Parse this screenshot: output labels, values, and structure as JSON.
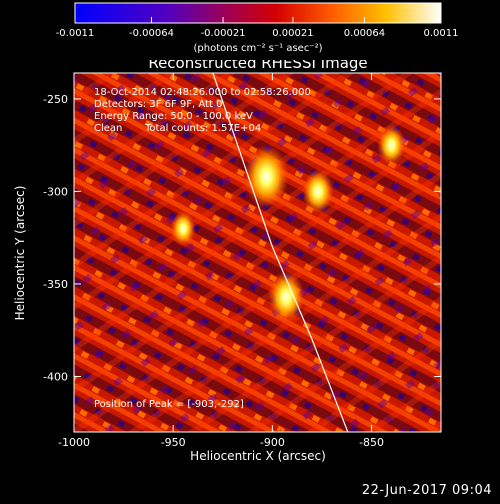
{
  "colors": {
    "background": "#000000",
    "foreground": "#ffffff",
    "colormap": [
      "#0000ff",
      "#6a00a8",
      "#c0002a",
      "#ff4000",
      "#ff9a00",
      "#ffff00",
      "#ffffff"
    ]
  },
  "colorbar": {
    "tick_labels": [
      "-0.0011",
      "-0.00064",
      "-0.00021",
      "0.00021",
      "0.00064",
      "0.0011"
    ],
    "tick_values": [
      -0.0011,
      -0.00064,
      -0.00021,
      0.00021,
      0.00064,
      0.0011
    ],
    "range": [
      -0.0011,
      0.0011
    ],
    "units_label": "(photons cm⁻² s⁻¹ asec⁻²)"
  },
  "chart_data": {
    "type": "heatmap",
    "title": "Reconstructed RHESSI Image",
    "xlabel": "Heliocentric X (arcsec)",
    "ylabel": "Heliocentric Y (arcsec)",
    "xlim": [
      -1000,
      -815
    ],
    "ylim": [
      -430,
      -236
    ],
    "x_ticks": [
      -1000,
      -950,
      -900,
      -850
    ],
    "x_tick_labels": [
      "-1000",
      "-950",
      "-900",
      "-850"
    ],
    "y_ticks": [
      -250,
      -300,
      -350,
      -400
    ],
    "y_tick_labels": [
      "-250",
      "-300",
      "-350",
      "-400"
    ],
    "limb_line": [
      [
        -930,
        -236
      ],
      [
        -900,
        -330
      ],
      [
        -880,
        -380
      ],
      [
        -862,
        -430
      ]
    ],
    "bright_sources": [
      {
        "x": -903,
        "y": -292,
        "peak": 0.0011
      },
      {
        "x": -893,
        "y": -357,
        "peak": 0.00085
      },
      {
        "x": -877,
        "y": -300,
        "peak": 0.0007
      },
      {
        "x": -840,
        "y": -275,
        "peak": 0.0006
      },
      {
        "x": -945,
        "y": -320,
        "peak": 0.0005
      }
    ],
    "grid": false
  },
  "annotations": {
    "time_range": "18-Oct-2014 02:48:26.000 to 02:58:26.000",
    "detectors": "Detectors: 3F 6F 9F, Att 0",
    "energy_range": "Energy Range: 50.0 - 100.0 keV",
    "method": "Clean",
    "total_counts": "Total counts: 1.57E+04",
    "peak_position": "Position of Peak = [-903,-292]"
  },
  "footer": {
    "date": "22-Jun-2017 09:04"
  }
}
